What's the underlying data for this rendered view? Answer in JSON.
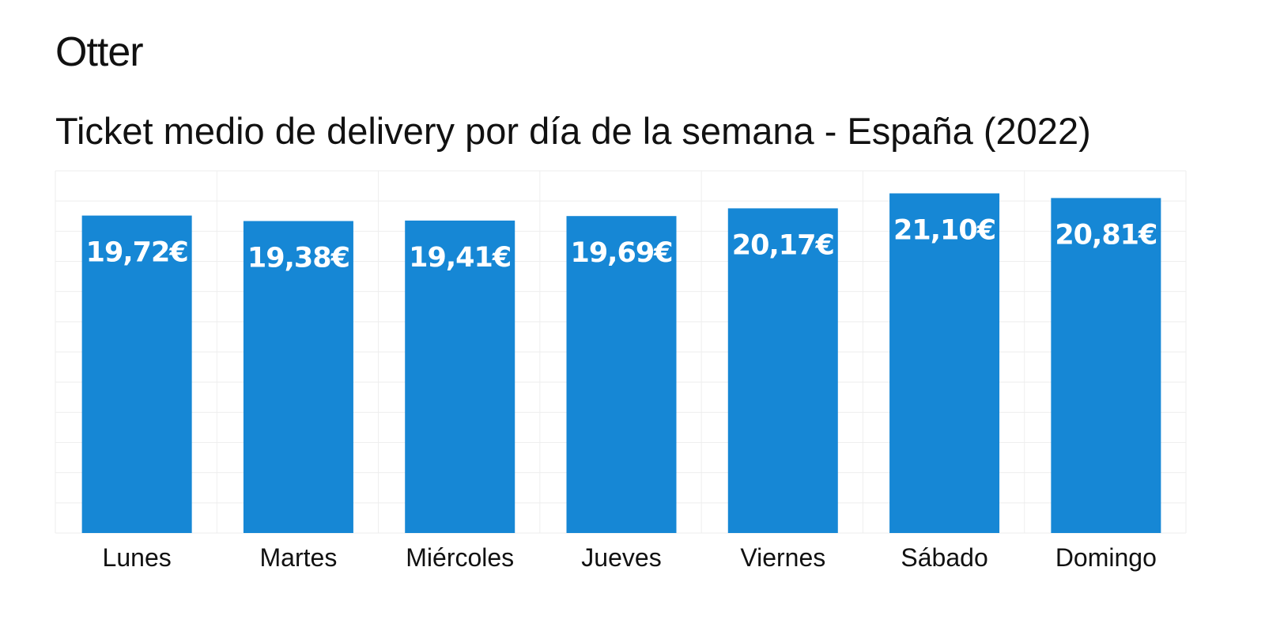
{
  "brand": {
    "logo_text": "Otter"
  },
  "chart_data": {
    "type": "bar",
    "title": "Ticket medio de delivery por día de la semana - España (2022)",
    "categories": [
      "Lunes",
      "Martes",
      "Miércoles",
      "Jueves",
      "Viernes",
      "Sábado",
      "Domingo"
    ],
    "values": [
      19.72,
      19.38,
      19.41,
      19.69,
      20.17,
      21.1,
      20.81
    ],
    "data_labels": [
      "19,72€",
      "19,38€",
      "19,41€",
      "19,69€",
      "20,17€",
      "21,10€",
      "20,81€"
    ],
    "xlabel": "",
    "ylabel": "",
    "ylim": [
      0,
      22.5
    ],
    "grid": true,
    "legend": "none",
    "bar_color": "#1687D5",
    "grid_color": "#EEEEEE",
    "label_color": "#FFFFFF"
  }
}
